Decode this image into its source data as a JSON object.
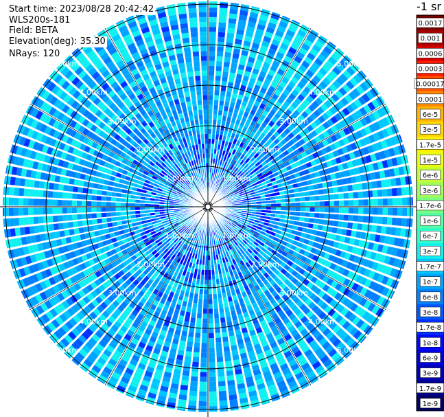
{
  "info": {
    "start_time": "Start time: 2023/08/28 20:42:42",
    "instrument": "WLS200s-181",
    "field": "Field: BETA",
    "elevation": "Elevation(deg): 35.30",
    "nrays": "NRays: 120"
  },
  "chart_data": {
    "type": "heatmap",
    "projection": "polar (PPI scan)",
    "field": "BETA",
    "n_rays": 120,
    "range_rings_km": [
      1,
      2,
      3,
      4,
      5
    ],
    "range_labels": [
      "1.00km",
      "2.00km",
      "3.00km",
      "4.00km",
      "5.00km"
    ],
    "colorbar": {
      "title": "-1 sr",
      "tick_labels": [
        "0.0017",
        "0.001",
        "0.0006",
        "0.0003",
        "0.00017",
        "0.0001",
        "6e-5",
        "3e-5",
        "1.7e-5",
        "1e-5",
        "6e-6",
        "3e-6",
        "1.7e-6",
        "1e-6",
        "6e-7",
        "3e-7",
        "1.7e-7",
        "1e-7",
        "6e-8",
        "3e-8",
        "1.7e-8",
        "1e-8",
        "6e-9",
        "3e-9",
        "1.7e-9",
        "1e-9"
      ],
      "colors": [
        "#7a0000",
        "#a80000",
        "#d40000",
        "#ff1a00",
        "#ff5200",
        "#ff8a00",
        "#ffb400",
        "#ffd600",
        "#fff200",
        "#e8ff12",
        "#c2ff36",
        "#9cff5a",
        "#78ff7e",
        "#52ffa4",
        "#2effc8",
        "#10f0f0",
        "#00c8ff",
        "#00a4ff",
        "#0080ff",
        "#0058ff",
        "#0030ff",
        "#0008ff",
        "#0000e0",
        "#0000b8",
        "#00008c",
        "#000060"
      ]
    },
    "dominant_level": "1e-7 to 1e-8 (cyan-blue)",
    "grid": true
  }
}
